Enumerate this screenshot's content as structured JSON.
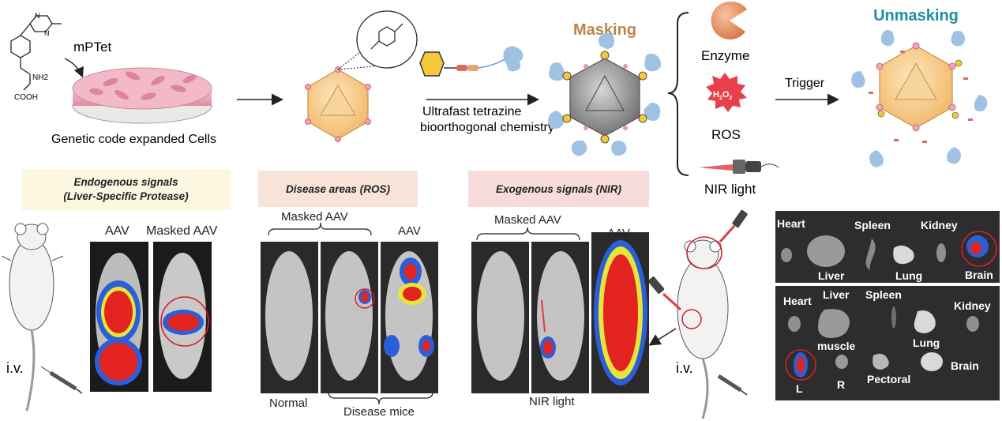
{
  "top": {
    "molecule_label": "mPTet",
    "nh2": "NH2",
    "cooh": "COOH",
    "cells_caption": "Genetic code expanded Cells",
    "chem_caption_line1": "Ultrafast tetrazine",
    "chem_caption_line2": "bioorthogonal chemistry",
    "masking": "Masking",
    "unmasking": "Unmasking",
    "enzyme": "Enzyme",
    "h2o2_h": "H",
    "h2o2_sub1": "2",
    "h2o2_o": "O",
    "h2o2_sub2": "2",
    "ros": "ROS",
    "nir_light": "NIR light",
    "trigger": "Trigger"
  },
  "panels": {
    "endogenous_title_line1": "Endogenous signals",
    "endogenous_title_line2": "(Liver-Specific Protease)",
    "disease_title": "Disease areas (ROS)",
    "exogenous_title": "Exogenous signals (NIR)",
    "endo_aav": "AAV",
    "endo_masked_aav": "Masked AAV",
    "iv_left": "i.v.",
    "ros_masked_aav": "Masked AAV",
    "ros_aav": "AAV",
    "ros_normal": "Normal",
    "ros_disease_mice": "Disease mice",
    "nir_masked_aav": "Masked AAV",
    "nir_aav": "AAV",
    "nir_light_caption": "NIR light",
    "iv_right": "i.v."
  },
  "organs_top": {
    "heart": "Heart",
    "spleen": "Spleen",
    "kidney": "Kidney",
    "liver": "Liver",
    "lung": "Lung",
    "brain": "Brain"
  },
  "organs_bottom": {
    "heart": "Heart",
    "liver": "Liver",
    "spleen": "Spleen",
    "kidney": "Kidney",
    "muscle": "muscle",
    "lung": "Lung",
    "l": "L",
    "r": "R",
    "pectoral": "Pectoral",
    "brain": "Brain"
  },
  "colors": {
    "masking_title": "#b8864b",
    "unmasking_title": "#1e8f9e",
    "capsid_fill": "#f5c27a",
    "masked_capsid": "#8a8a8a",
    "ros_star": "#e8404a",
    "panel_endo_bg": "#fbf7e1",
    "panel_ros_bg": "#f8e3d8",
    "panel_nir_bg": "#f8dcdc",
    "highlight_circle": "#d4202a"
  }
}
